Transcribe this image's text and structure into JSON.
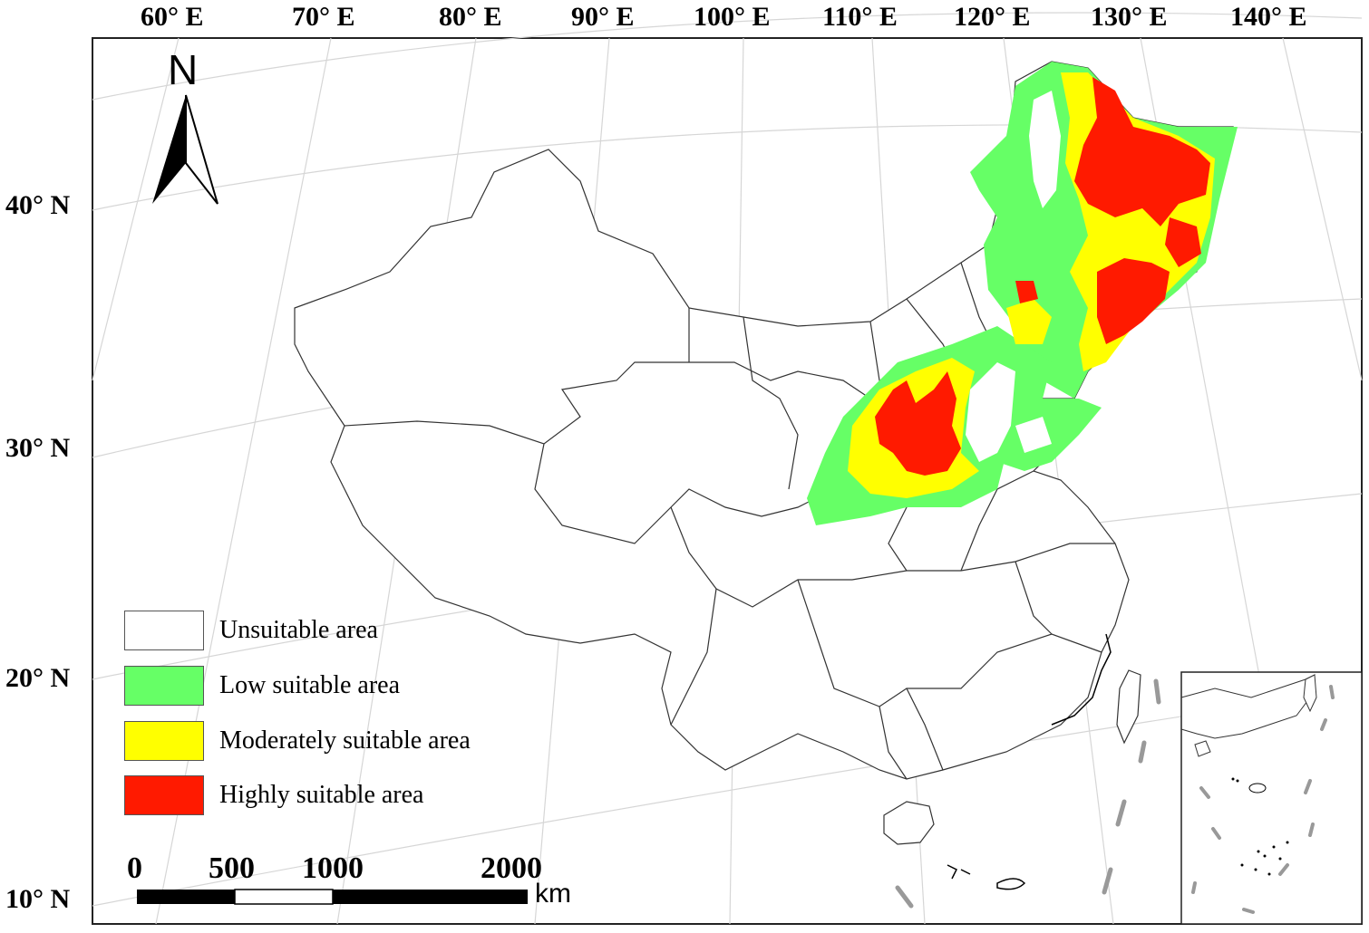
{
  "map": {
    "longitude_labels": [
      "60° E",
      "70° E",
      "80° E",
      "90° E",
      "100° E",
      "110° E",
      "120° E",
      "130° E",
      "140° E"
    ],
    "latitude_labels": [
      "40° N",
      "30° N",
      "20° N",
      "10° N"
    ],
    "north_arrow": {
      "label": "N",
      "icon": "north-arrow-icon"
    },
    "legend": [
      {
        "label": "Unsuitable area",
        "color": "#ffffff"
      },
      {
        "label": "Low suitable area",
        "color": "#66ff66"
      },
      {
        "label": "Moderately suitable area",
        "color": "#ffff00"
      },
      {
        "label": "Highly suitable area",
        "color": "#ff1a00"
      }
    ],
    "scale_bar": {
      "ticks": [
        "0",
        "500",
        "1000",
        "2000"
      ],
      "unit": "km"
    }
  }
}
